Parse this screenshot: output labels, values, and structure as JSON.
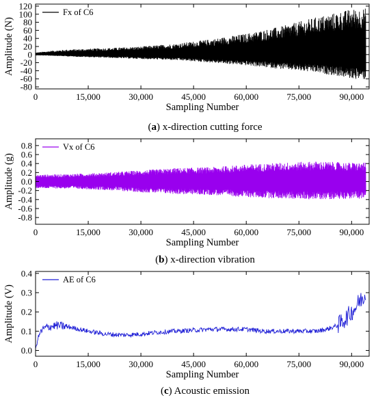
{
  "chart_data": [
    {
      "type": "line",
      "panel": "a",
      "caption_letter": "a",
      "caption_text": "x-direction cutting force",
      "xlabel": "Sampling Number",
      "ylabel": "Amplitude (N)",
      "xlim": [
        0,
        95000
      ],
      "ylim": [
        -85,
        125
      ],
      "xticks": [
        0,
        15000,
        30000,
        45000,
        60000,
        75000,
        90000
      ],
      "xtick_labels": [
        "0",
        "15,000",
        "30,000",
        "45,000",
        "60,000",
        "75,000",
        "90,000"
      ],
      "yticks": [
        -80,
        -60,
        -40,
        -20,
        0,
        20,
        40,
        60,
        80,
        100,
        120
      ],
      "ytick_labels": [
        "-80",
        "-60",
        "-40",
        "-20",
        "0",
        "20",
        "40",
        "60",
        "80",
        "100",
        "120"
      ],
      "grid": false,
      "legend_position": "top-left",
      "series": [
        {
          "name": "Fx of C6",
          "color": "#000000",
          "style": "oscillating-envelope",
          "envelope_x": [
            0,
            5000,
            10000,
            20000,
            30000,
            40000,
            50000,
            60000,
            70000,
            80000,
            85000,
            90000,
            94000
          ],
          "upper": [
            5,
            10,
            13,
            16,
            20,
            27,
            38,
            52,
            70,
            93,
            103,
            113,
            115
          ],
          "lower": [
            -2,
            -3,
            -5,
            -8,
            -11,
            -14,
            -20,
            -27,
            -36,
            -45,
            -52,
            -60,
            -62
          ]
        }
      ]
    },
    {
      "type": "line",
      "panel": "b",
      "caption_letter": "b",
      "caption_text": "x-direction vibration",
      "xlabel": "Sampling Number",
      "ylabel": "Amplitude (g)",
      "xlim": [
        0,
        95000
      ],
      "ylim": [
        -0.95,
        0.95
      ],
      "xticks": [
        0,
        15000,
        30000,
        45000,
        60000,
        75000,
        90000
      ],
      "xtick_labels": [
        "0",
        "15,000",
        "30,000",
        "45,000",
        "60,000",
        "75,000",
        "90,000"
      ],
      "yticks": [
        -0.8,
        -0.6,
        -0.4,
        -0.2,
        0.0,
        0.2,
        0.4,
        0.6,
        0.8
      ],
      "ytick_labels": [
        "-0.8",
        "-0.6",
        "-0.4",
        "-0.2",
        "0.0",
        "0.2",
        "0.4",
        "0.6",
        "0.8"
      ],
      "grid": false,
      "legend_position": "top-left",
      "series": [
        {
          "name": "Vx of C6",
          "color": "#9900ee",
          "style": "oscillating-envelope",
          "envelope_x": [
            0,
            10000,
            20000,
            30000,
            40000,
            50000,
            60000,
            70000,
            80000,
            90000,
            94000
          ],
          "upper": [
            0.15,
            0.17,
            0.2,
            0.25,
            0.3,
            0.32,
            0.38,
            0.42,
            0.45,
            0.42,
            0.42
          ],
          "lower": [
            -0.15,
            -0.16,
            -0.19,
            -0.24,
            -0.28,
            -0.3,
            -0.35,
            -0.38,
            -0.4,
            -0.38,
            -0.38
          ]
        }
      ]
    },
    {
      "type": "line",
      "panel": "c",
      "caption_letter": "c",
      "caption_text": "Acoustic emission",
      "xlabel": "Sampling Number",
      "ylabel": "Amplitude (V)",
      "xlim": [
        0,
        95000
      ],
      "ylim": [
        -0.03,
        0.41
      ],
      "xticks": [
        0,
        15000,
        30000,
        45000,
        60000,
        75000,
        90000
      ],
      "xtick_labels": [
        "0",
        "15,000",
        "30,000",
        "45,000",
        "60,000",
        "75,000",
        "90,000"
      ],
      "yticks": [
        0.0,
        0.1,
        0.2,
        0.3,
        0.4
      ],
      "ytick_labels": [
        "0.0",
        "0.1",
        "0.2",
        "0.3",
        "0.4"
      ],
      "grid": false,
      "legend_position": "top-left",
      "series": [
        {
          "name": "AE of C6",
          "color": "#1f1fd6",
          "style": "noisy-line",
          "x": [
            0,
            600,
            1500,
            3000,
            6000,
            10000,
            15000,
            20000,
            25000,
            30000,
            35000,
            40000,
            45000,
            50000,
            55000,
            60000,
            65000,
            70000,
            75000,
            80000,
            83000,
            86000,
            88000,
            90000,
            91000,
            92000,
            93000,
            94000
          ],
          "y": [
            0.0,
            0.06,
            0.1,
            0.12,
            0.13,
            0.12,
            0.1,
            0.085,
            0.08,
            0.085,
            0.095,
            0.1,
            0.105,
            0.11,
            0.11,
            0.11,
            0.1,
            0.1,
            0.1,
            0.1,
            0.11,
            0.13,
            0.16,
            0.2,
            0.22,
            0.25,
            0.27,
            0.29
          ]
        }
      ]
    }
  ]
}
